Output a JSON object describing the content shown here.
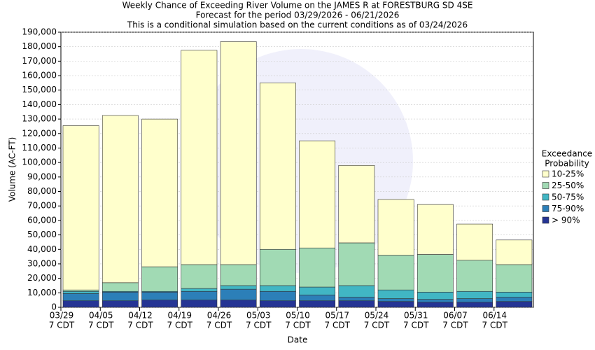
{
  "chart_data": {
    "type": "stacked_bar",
    "title": "Weekly Chance of Exceeding River Volume on the JAMES R at FORESTBURG SD 4SE",
    "subtitle": [
      "Forecast for the period 03/29/2026 - 06/21/2026",
      "This is a conditional simulation based on the current conditions as of 03/24/2026"
    ],
    "x_label": "Date",
    "y_label": "Volume (AC-FT)",
    "legend_title": [
      "Exceedance",
      "Probability"
    ],
    "legend_position": "right",
    "grid": true,
    "categories": [
      "03/29",
      "04/05",
      "04/12",
      "04/19",
      "04/26",
      "05/03",
      "05/10",
      "05/17",
      "05/24",
      "05/31",
      "06/07",
      "06/14"
    ],
    "category_sublabels": [
      "7 CDT",
      "7 CDT",
      "7 CDT",
      "7 CDT",
      "7 CDT",
      "7 CDT",
      "7 CDT",
      "7 CDT",
      "7 CDT",
      "7 CDT",
      "7 CDT",
      "7 CDT"
    ],
    "series": [
      {
        "name": "> 90%",
        "color": "#253494",
        "values": [
          4500,
          4500,
          5000,
          5000,
          5000,
          4500,
          4500,
          4500,
          4000,
          3500,
          3500,
          4000
        ]
      },
      {
        "name": "75-90%",
        "color": "#2c7fb8",
        "values": [
          5000,
          6000,
          5500,
          6000,
          7500,
          6500,
          4000,
          2500,
          2000,
          2000,
          2500,
          3000
        ]
      },
      {
        "name": "50-75%",
        "color": "#41b6c4",
        "values": [
          1500,
          500,
          500,
          2000,
          2500,
          4000,
          5500,
          8000,
          6000,
          5000,
          5000,
          3500
        ]
      },
      {
        "name": "25-50%",
        "color": "#a1dab4",
        "values": [
          1000,
          6000,
          17000,
          16500,
          14500,
          25000,
          27000,
          29500,
          24000,
          26000,
          21500,
          19000
        ]
      },
      {
        "name": "10-25%",
        "color": "#ffffcc",
        "values": [
          113500,
          115500,
          102000,
          148000,
          154000,
          115000,
          74000,
          53500,
          38500,
          34500,
          25000,
          17000
        ]
      }
    ],
    "ylim": [
      0,
      190000
    ],
    "yticks": [
      0,
      {
        "value": 10000,
        "label": "10,000"
      },
      {
        "value": 20000,
        "label": "20,000"
      },
      {
        "value": 30000,
        "label": "30,000"
      },
      {
        "value": 40000,
        "label": "40,000"
      },
      {
        "value": 50000,
        "label": "50,000"
      },
      {
        "value": 60000,
        "label": "60,000"
      },
      {
        "value": 70000,
        "label": "70,000"
      },
      {
        "value": 80000,
        "label": "80,000"
      },
      {
        "value": 90000,
        "label": "90,000"
      },
      {
        "value": 100000,
        "label": "100,000"
      },
      {
        "value": 110000,
        "label": "110,000"
      },
      {
        "value": 120000,
        "label": "120,000"
      },
      {
        "value": 130000,
        "label": "130,000"
      },
      {
        "value": 140000,
        "label": "140,000"
      },
      {
        "value": 150000,
        "label": "150,000"
      },
      {
        "value": 160000,
        "label": "160,000"
      },
      {
        "value": 170000,
        "label": "170,000"
      },
      {
        "value": 180000,
        "label": "180,000"
      },
      {
        "value": 190000,
        "label": "190,000"
      }
    ]
  }
}
